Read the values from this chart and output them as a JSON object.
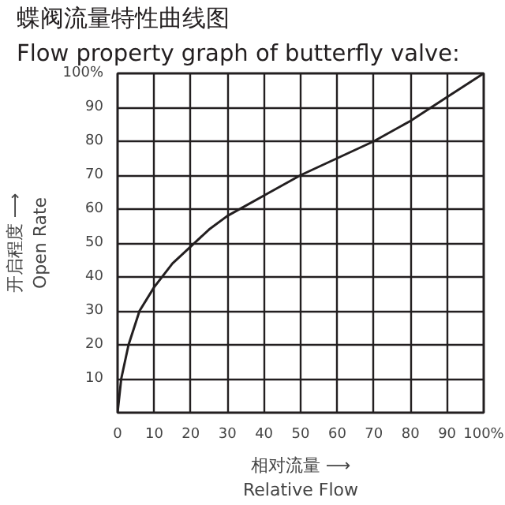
{
  "chart_data": {
    "type": "line",
    "title": "蝶阀流量特性曲线图",
    "subtitle": "Flow property graph of butterfly valve:",
    "xlabel": "相对流量 ⟶\nRelative Flow",
    "ylabel": "开启程度 ⟶\nOpen Rate",
    "x": [
      0,
      1,
      3,
      6,
      10,
      15,
      20,
      25,
      30,
      40,
      50,
      60,
      70,
      80,
      90,
      100
    ],
    "series": [
      {
        "color": "#231f20",
        "values": [
          0,
          10,
          20,
          30,
          37,
          44,
          49,
          54,
          58,
          64,
          70,
          75,
          80,
          86,
          93,
          100
        ]
      }
    ],
    "xlim": [
      0,
      100
    ],
    "ylim": [
      0,
      100
    ],
    "xticks": [
      0,
      10,
      20,
      30,
      40,
      50,
      60,
      70,
      80,
      90,
      {
        "value": 100,
        "label": "100%"
      }
    ],
    "yticks": [
      10,
      20,
      30,
      40,
      50,
      60,
      70,
      80,
      90,
      {
        "value": 100,
        "label": "100%"
      }
    ],
    "grid": true,
    "marker": "none",
    "line_style": "solid"
  }
}
